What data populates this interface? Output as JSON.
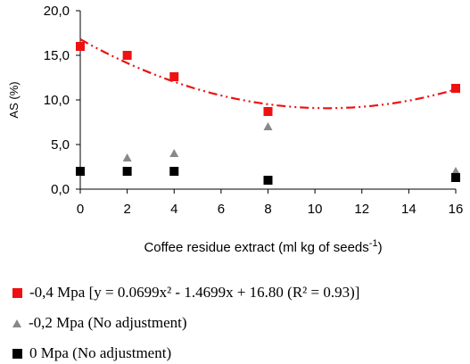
{
  "chart_data": {
    "type": "scatter",
    "xlabel": "Coffee residue extract (ml kg of seeds",
    "xlabel_sup": "-1",
    "xlabel_close": ")",
    "ylabel": "AS (%)",
    "xlim": [
      0,
      16
    ],
    "ylim": [
      0,
      20
    ],
    "x_ticks": [
      "0",
      "2",
      "4",
      "6",
      "8",
      "10",
      "12",
      "14",
      "16"
    ],
    "y_ticks": [
      "0,0",
      "5,0",
      "10,0",
      "15,0",
      "20,0"
    ],
    "grid": false,
    "legend_position": "bottom",
    "series": [
      {
        "name": "-0,4 Mpa [y = 0.0699x² - 1.4699x + 16.80 (R² = 0.93)]",
        "marker": "square",
        "color": "#ee1111",
        "x": [
          0,
          2,
          4,
          8,
          16
        ],
        "y": [
          16.0,
          15.0,
          12.6,
          8.7,
          11.3
        ],
        "fit": {
          "type": "quadratic",
          "a": 0.0699,
          "b": -1.4699,
          "c": 16.8,
          "r2": 0.93
        }
      },
      {
        "name": "-0,2 Mpa (No adjustment)",
        "marker": "triangle",
        "color": "#888888",
        "x": [
          0,
          2,
          4,
          8,
          16
        ],
        "y": [
          2.0,
          3.5,
          4.0,
          7.0,
          2.0
        ]
      },
      {
        "name": "0 Mpa (No adjustment)",
        "marker": "square",
        "color": "#000000",
        "x": [
          0,
          2,
          4,
          8,
          16
        ],
        "y": [
          2.0,
          2.0,
          2.0,
          1.0,
          1.3
        ]
      }
    ]
  }
}
